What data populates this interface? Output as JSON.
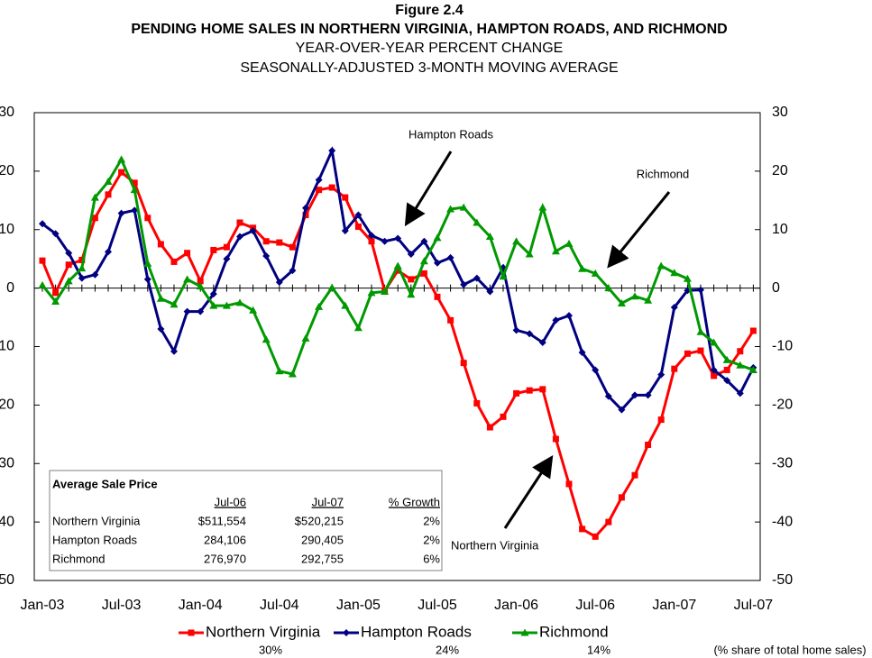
{
  "chart_data": {
    "type": "line",
    "title": "Figure 2.4",
    "subtitle": "PENDING HOME SALES IN NORTHERN VIRGINIA, HAMPTON ROADS, AND RICHMOND",
    "subtitle2": "YEAR-OVER-YEAR PERCENT CHANGE",
    "subtitle3": "SEASONALLY-ADJUSTED 3-MONTH MOVING AVERAGE",
    "categories": [
      "Jan-03",
      null,
      null,
      null,
      null,
      null,
      "Jul-03",
      null,
      null,
      null,
      null,
      null,
      "Jan-04",
      null,
      null,
      null,
      null,
      null,
      "Jul-04",
      null,
      null,
      null,
      null,
      null,
      "Jan-05",
      null,
      null,
      null,
      null,
      null,
      "Jul-05",
      null,
      null,
      null,
      null,
      null,
      "Jan-06",
      null,
      null,
      null,
      null,
      null,
      "Jul-06",
      null,
      null,
      null,
      null,
      null,
      "Jan-07",
      null,
      null,
      null,
      null,
      null,
      "Jul-07"
    ],
    "ylim": [
      -50,
      30
    ],
    "yticks": [
      {
        "value": -50,
        "label": "50"
      },
      {
        "value": -40,
        "label": "40"
      },
      {
        "value": -30,
        "label": "30"
      },
      {
        "value": -20,
        "label": "20"
      },
      {
        "value": -10,
        "label": "10"
      },
      0,
      10,
      20,
      30
    ],
    "y2lim": [
      -50,
      30
    ],
    "y2ticks": [
      -50,
      -40,
      -30,
      -20,
      -10,
      0,
      10,
      20,
      30
    ],
    "grid": false,
    "legend": "bottom",
    "series": [
      {
        "name": "Northern Virginia",
        "color": "#ff0000",
        "marker": "square",
        "share": "30%",
        "values": [
          4.7,
          -0.8,
          4,
          4.8,
          12,
          16,
          19.8,
          18,
          12,
          7.5,
          4.5,
          6,
          1.2,
          6.5,
          7,
          11.2,
          10.3,
          8,
          7.8,
          7,
          12.5,
          16.8,
          17.2,
          15.5,
          10.5,
          8,
          -0.5,
          3,
          1.5,
          2.5,
          -1.5,
          -5.5,
          -12.8,
          -19.7,
          -23.8,
          -22,
          -18,
          -17.5,
          -17.3,
          -25.8,
          -33.5,
          -41.2,
          -42.5,
          -40,
          -35.8,
          -32,
          -26.8,
          -22.5,
          -13.8,
          -11.2,
          -10.7,
          -15,
          -14,
          -10.8,
          -7.3
        ]
      },
      {
        "name": "Hampton Roads",
        "color": "#000080",
        "marker": "diamond",
        "share": "24%",
        "values": [
          11,
          9.3,
          6,
          1.7,
          2.3,
          6.2,
          12.8,
          13.3,
          1.5,
          -7,
          -10.8,
          -4,
          -4,
          -1,
          5,
          8.8,
          9.8,
          5.5,
          1,
          3,
          13.7,
          18.5,
          23.5,
          9.8,
          12.5,
          9,
          8,
          8.5,
          5.8,
          8,
          4.3,
          5.2,
          0.6,
          1.7,
          -0.6,
          3.5,
          -7.2,
          -7.8,
          -9.3,
          -5.5,
          -4.7,
          -11,
          -14,
          -18.5,
          -20.8,
          -18.3,
          -18.3,
          -14.8,
          -3.3,
          -0.4,
          -0.3,
          -14,
          -15.8,
          -18,
          -13.6
        ]
      },
      {
        "name": "Richmond",
        "color": "#009900",
        "marker": "triangle",
        "share": "14%",
        "values": [
          0.5,
          -2.3,
          1.2,
          3.4,
          15.5,
          18.2,
          22,
          16.8,
          4.2,
          -1.8,
          -2.8,
          1.5,
          0.3,
          -3,
          -3,
          -2.5,
          -3.8,
          -8.8,
          -14.2,
          -14.7,
          -8.6,
          -3.2,
          0.1,
          -3,
          -6.8,
          -0.8,
          -0.6,
          3.8,
          -1.1,
          4.6,
          8.6,
          13.5,
          13.8,
          11.2,
          8.8,
          2,
          8,
          5.8,
          13.8,
          6.3,
          7.6,
          3.3,
          2.5,
          0,
          -2.6,
          -1.4,
          -2.1,
          3.8,
          2.6,
          1.6,
          -7.5,
          -9.3,
          -12.3,
          -13.2,
          -14
        ]
      }
    ],
    "share_note": "(% share of total home sales)",
    "annotations": [
      "Hampton Roads",
      "Richmond",
      "Northern Virginia"
    ],
    "table": {
      "title": "Average Sale Price",
      "columns": [
        "Jul-06",
        "Jul-07",
        "% Growth"
      ],
      "rows": [
        [
          "Northern Virginia",
          "$511,554",
          "$520,215",
          "2%"
        ],
        [
          "Hampton Roads",
          "284,106",
          "290,405",
          "2%"
        ],
        [
          "Richmond",
          "276,970",
          "292,755",
          "6%"
        ]
      ]
    }
  }
}
